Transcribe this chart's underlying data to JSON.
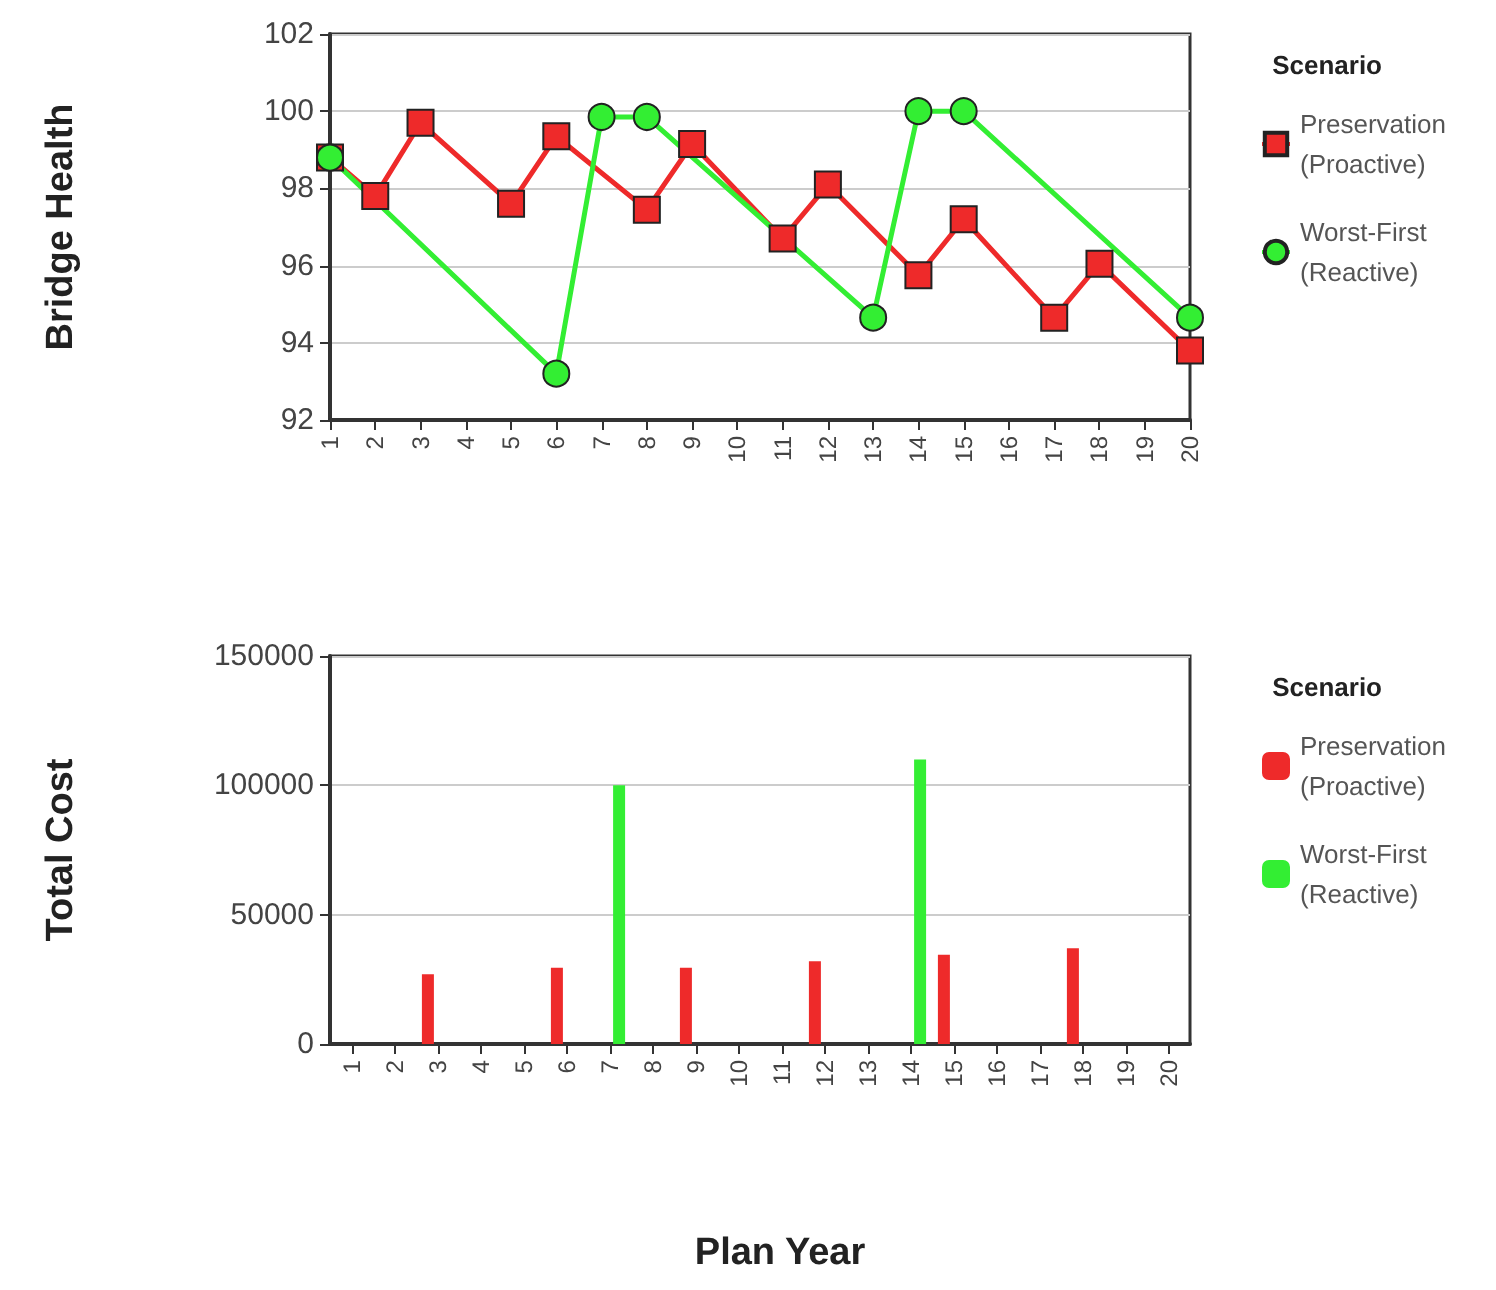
{
  "chart_data": [
    {
      "type": "line",
      "ylabel": "Bridge Health",
      "legend_title": "Scenario",
      "legend": "right",
      "grid": "y",
      "categories": [
        "1",
        "2",
        "3",
        "4",
        "5",
        "6",
        "7",
        "8",
        "9",
        "10",
        "11",
        "12",
        "13",
        "14",
        "15",
        "16",
        "17",
        "18",
        "19",
        "20"
      ],
      "ylim": [
        92,
        102
      ],
      "yticks": [
        92,
        94,
        96,
        98,
        100,
        102
      ],
      "series": [
        {
          "name": "Preservation (Proactive)",
          "color": "#ee2a2a",
          "marker": "square",
          "values": [
            98.8,
            97.8,
            99.7,
            null,
            97.6,
            99.35,
            null,
            97.45,
            99.15,
            null,
            96.7,
            98.1,
            null,
            95.75,
            97.2,
            null,
            94.65,
            96.05,
            null,
            93.8
          ]
        },
        {
          "name": "Worst-First (Reactive)",
          "color": "#33ee33",
          "marker": "circle",
          "values": [
            98.8,
            null,
            null,
            null,
            null,
            93.2,
            99.85,
            99.85,
            null,
            null,
            null,
            null,
            94.65,
            100,
            100,
            null,
            null,
            null,
            null,
            94.65
          ]
        }
      ]
    },
    {
      "type": "bar",
      "ylabel": "Total Cost",
      "xlabel": "Plan Year",
      "legend_title": "Scenario",
      "legend": "right",
      "grid": "y",
      "categories": [
        "1",
        "2",
        "3",
        "4",
        "5",
        "6",
        "7",
        "8",
        "9",
        "10",
        "11",
        "12",
        "13",
        "14",
        "15",
        "16",
        "17",
        "18",
        "19",
        "20"
      ],
      "ylim": [
        0,
        150000
      ],
      "yticks": [
        0,
        50000,
        100000,
        150000
      ],
      "series": [
        {
          "name": "Preservation (Proactive)",
          "color": "#ee2a2a",
          "values": [
            null,
            null,
            27000,
            null,
            null,
            29500,
            null,
            null,
            29500,
            null,
            null,
            32000,
            null,
            null,
            34500,
            null,
            null,
            37000,
            null,
            null
          ]
        },
        {
          "name": "Worst-First (Reactive)",
          "color": "#33ee33",
          "values": [
            null,
            null,
            null,
            null,
            null,
            null,
            100000,
            null,
            null,
            null,
            null,
            null,
            null,
            110000,
            null,
            null,
            null,
            null,
            null,
            null
          ]
        }
      ]
    }
  ]
}
